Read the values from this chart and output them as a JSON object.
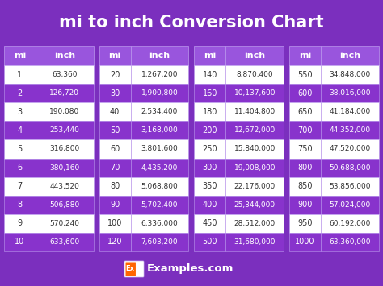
{
  "title": "mi to inch Conversion Chart",
  "bg_color": "#7B2FBE",
  "header_bg": "#9955DD",
  "row_white": "#FFFFFF",
  "row_purple": "#8833CC",
  "header_text_color": "#FFFFFF",
  "cell_white_text": "#333333",
  "cell_purple_text": "#FFFFFF",
  "title_color": "#FFFFFF",
  "border_color": "#BB99EE",
  "tables": [
    {
      "mi": [
        1,
        2,
        3,
        4,
        5,
        6,
        7,
        8,
        9,
        10
      ],
      "inch": [
        "63,360",
        "126,720",
        "190,080",
        "253,440",
        "316,800",
        "380,160",
        "443,520",
        "506,880",
        "570,240",
        "633,600"
      ]
    },
    {
      "mi": [
        20,
        30,
        40,
        50,
        60,
        70,
        80,
        90,
        100,
        120
      ],
      "inch": [
        "1,267,200",
        "1,900,800",
        "2,534,400",
        "3,168,000",
        "3,801,600",
        "4,435,200",
        "5,068,800",
        "5,702,400",
        "6,336,000",
        "7,603,200"
      ]
    },
    {
      "mi": [
        140,
        160,
        180,
        200,
        250,
        300,
        350,
        400,
        450,
        500
      ],
      "inch": [
        "8,870,400",
        "10,137,600",
        "11,404,800",
        "12,672,000",
        "15,840,000",
        "19,008,000",
        "22,176,000",
        "25,344,000",
        "28,512,000",
        "31,680,000"
      ]
    },
    {
      "mi": [
        550,
        600,
        650,
        700,
        750,
        800,
        850,
        900,
        950,
        1000
      ],
      "inch": [
        "34,848,000",
        "38,016,000",
        "41,184,000",
        "44,352,000",
        "47,520,000",
        "50,688,000",
        "53,856,000",
        "57,024,000",
        "60,192,000",
        "63,360,000"
      ]
    }
  ],
  "footer_text": "Examples.com",
  "footer_ex_bg": "#FF6600"
}
